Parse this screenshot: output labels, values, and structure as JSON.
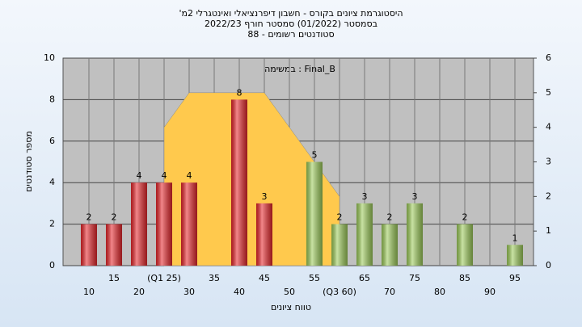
{
  "chart_data": {
    "type": "bar",
    "title": "'היסטוגרמת ציונים בקורס - חשבון דיפרנציאלי ואינטגרלי 2מ",
    "subtitle": "בסמסטר  (01/2022)  סמסטר חורף 2022/23",
    "subtitle2": "סטודנטים רשומים - 88",
    "annotation": "במשימה : Final_B",
    "y_label": "מספר סטודנטים",
    "x_label": "טווח ציונים",
    "categories": [
      "10",
      "15",
      "20",
      "(Q1 25)",
      "30",
      "35",
      "40",
      "45",
      "50",
      "55",
      "(Q3 60)",
      "65",
      "70",
      "75",
      "80",
      "85",
      "90",
      "95"
    ],
    "xlim": [
      7.5,
      97.5
    ],
    "series": [
      {
        "values": [
          2,
          2,
          4,
          4,
          4,
          0,
          8,
          3,
          0,
          5,
          2,
          3,
          2,
          3,
          0,
          2,
          0,
          1
        ],
        "colors": [
          "#e8262b",
          "#e8262b",
          "#e8262b",
          "#e8262b",
          "#e8262b",
          "#e8262b",
          "#e8262b",
          "#e8262b",
          "#e8262b",
          "#9dcc5a",
          "#9dcc5a",
          "#9dcc5a",
          "#9dcc5a",
          "#9dcc5a",
          "#9dcc5a",
          "#9dcc5a",
          "#9dcc5a",
          "#9dcc5a"
        ]
      }
    ],
    "curve": {
      "type": "area",
      "x": [
        25,
        30,
        45,
        50,
        60
      ],
      "values": [
        4,
        5,
        5,
        4,
        2
      ],
      "axis": "y2",
      "color": "#ffc94d"
    },
    "ylim": [
      0,
      10
    ],
    "yticks": [
      0,
      2,
      4,
      6,
      8,
      10
    ],
    "y2lim": [
      0,
      6
    ],
    "y2ticks": [
      0,
      1,
      2,
      3,
      4,
      5,
      6
    ],
    "grid": true
  }
}
